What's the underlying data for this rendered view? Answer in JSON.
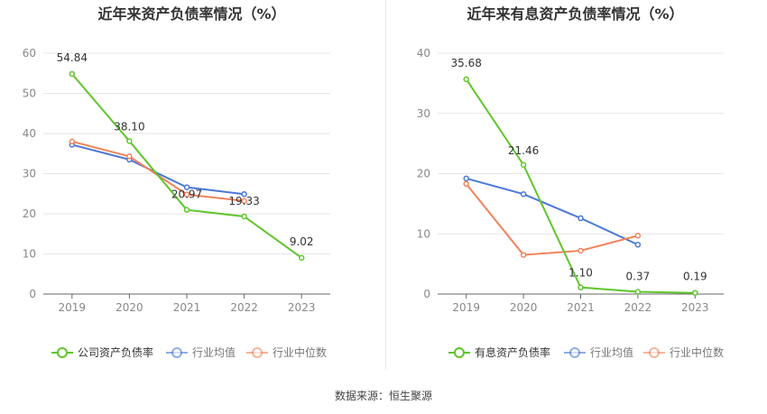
{
  "chart_data": [
    {
      "type": "line",
      "title": "近年来资产负债率情况（%）",
      "categories": [
        "2019",
        "2020",
        "2021",
        "2022",
        "2023"
      ],
      "ylim": [
        0,
        60
      ],
      "yticks": [
        0,
        10,
        20,
        30,
        40,
        50,
        60
      ],
      "grid": true,
      "legend_position": "bottom",
      "series": [
        {
          "name": "公司资产负债率",
          "color": "#5fc52c",
          "values": [
            54.84,
            38.1,
            20.97,
            19.33,
            9.02
          ],
          "labels": [
            "54.84",
            "38.10",
            "20.97",
            "19.33",
            "9.02"
          ]
        },
        {
          "name": "行业均值",
          "color": "#4a78d8",
          "values": [
            37.2,
            33.5,
            26.6,
            24.9,
            null
          ]
        },
        {
          "name": "行业中位数",
          "color": "#f0835a",
          "values": [
            38.0,
            34.3,
            24.8,
            23.2,
            null
          ]
        }
      ]
    },
    {
      "type": "line",
      "title": "近年来有息资产负债率情况（%）",
      "categories": [
        "2019",
        "2020",
        "2021",
        "2022",
        "2023"
      ],
      "ylim": [
        0,
        40
      ],
      "yticks": [
        0,
        10,
        20,
        30,
        40
      ],
      "grid": true,
      "legend_position": "bottom",
      "series": [
        {
          "name": "有息资产负债率",
          "color": "#5fc52c",
          "values": [
            35.68,
            21.46,
            1.1,
            0.37,
            0.19
          ],
          "labels": [
            "35.68",
            "21.46",
            "1.10",
            "0.37",
            "0.19"
          ]
        },
        {
          "name": "行业均值",
          "color": "#4a78d8",
          "values": [
            19.2,
            16.6,
            12.6,
            8.2,
            null
          ]
        },
        {
          "name": "行业中位数",
          "color": "#f0835a",
          "values": [
            18.3,
            6.5,
            7.2,
            9.7,
            null
          ]
        }
      ]
    }
  ],
  "source_text": "数据来源：恒生聚源"
}
